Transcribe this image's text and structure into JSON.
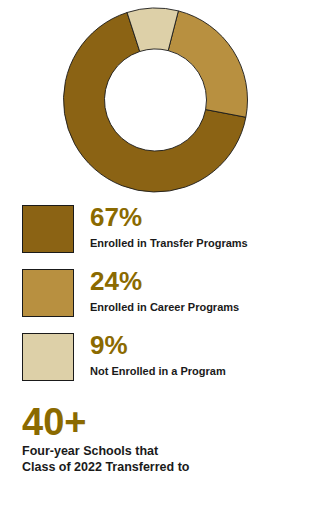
{
  "chart_data": {
    "type": "pie",
    "categories": [
      "Enrolled in Transfer Programs",
      "Enrolled in Career Programs",
      "Not Enrolled in a Program"
    ],
    "values": [
      67,
      24,
      9
    ],
    "value_labels": [
      "67%",
      "24%",
      "9%"
    ],
    "colors": [
      "#8B6314",
      "#B89040",
      "#DDD0A8"
    ],
    "data_labels": true,
    "legend": "bottom",
    "annotations": [
      {
        "text": "40+",
        "color": "#8B6A00"
      },
      {
        "text": "Four-year Schools that",
        "color": "#1a1a1a"
      },
      {
        "text": "Class of 2022 Transferred to",
        "color": "#1a1a1a"
      }
    ]
  }
}
